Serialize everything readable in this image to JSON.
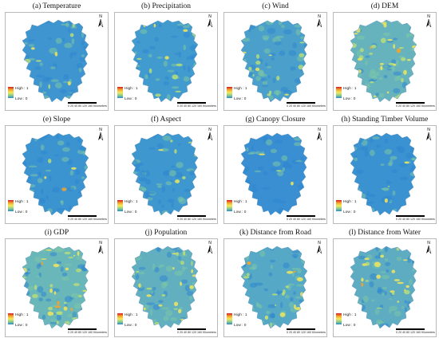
{
  "panels": [
    {
      "title": "(a) Temperature",
      "base": "#3f95cf",
      "hot": 0.1
    },
    {
      "title": "(b) Precipitation",
      "base": "#419bce",
      "hot": 0.16
    },
    {
      "title": "(c) Wind",
      "base": "#4a9fcb",
      "hot": 0.15
    },
    {
      "title": "(d) DEM",
      "base": "#66b3bd",
      "hot": 0.42
    },
    {
      "title": "(e) Slope",
      "base": "#3b93d0",
      "hot": 0.08
    },
    {
      "title": "(f) Aspect",
      "base": "#3e97cf",
      "hot": 0.09
    },
    {
      "title": "(g) Canopy Closure",
      "base": "#3a8fd2",
      "hot": 0.04
    },
    {
      "title": "(h) Standing Timber Volume",
      "base": "#3b92d1",
      "hot": 0.05
    },
    {
      "title": "(i) GDP",
      "base": "#6ab7ba",
      "hot": 0.4
    },
    {
      "title": "(j) Population",
      "base": "#62b0bf",
      "hot": 0.34
    },
    {
      "title": "(k) Distance from Road",
      "base": "#55a8c6",
      "hot": 0.24
    },
    {
      "title": "(l) Distance from Water",
      "base": "#5dacc2",
      "hot": 0.28
    }
  ],
  "legend": {
    "high": "High : 1",
    "low": "Low : 0"
  },
  "scale": {
    "labels": "0 20 40    80   120   160",
    "unit": "Kilometers"
  },
  "north_label": "N",
  "colors": {
    "high": "#d7191c",
    "mid": "#f5e95a",
    "low": "#2b8bc8"
  }
}
